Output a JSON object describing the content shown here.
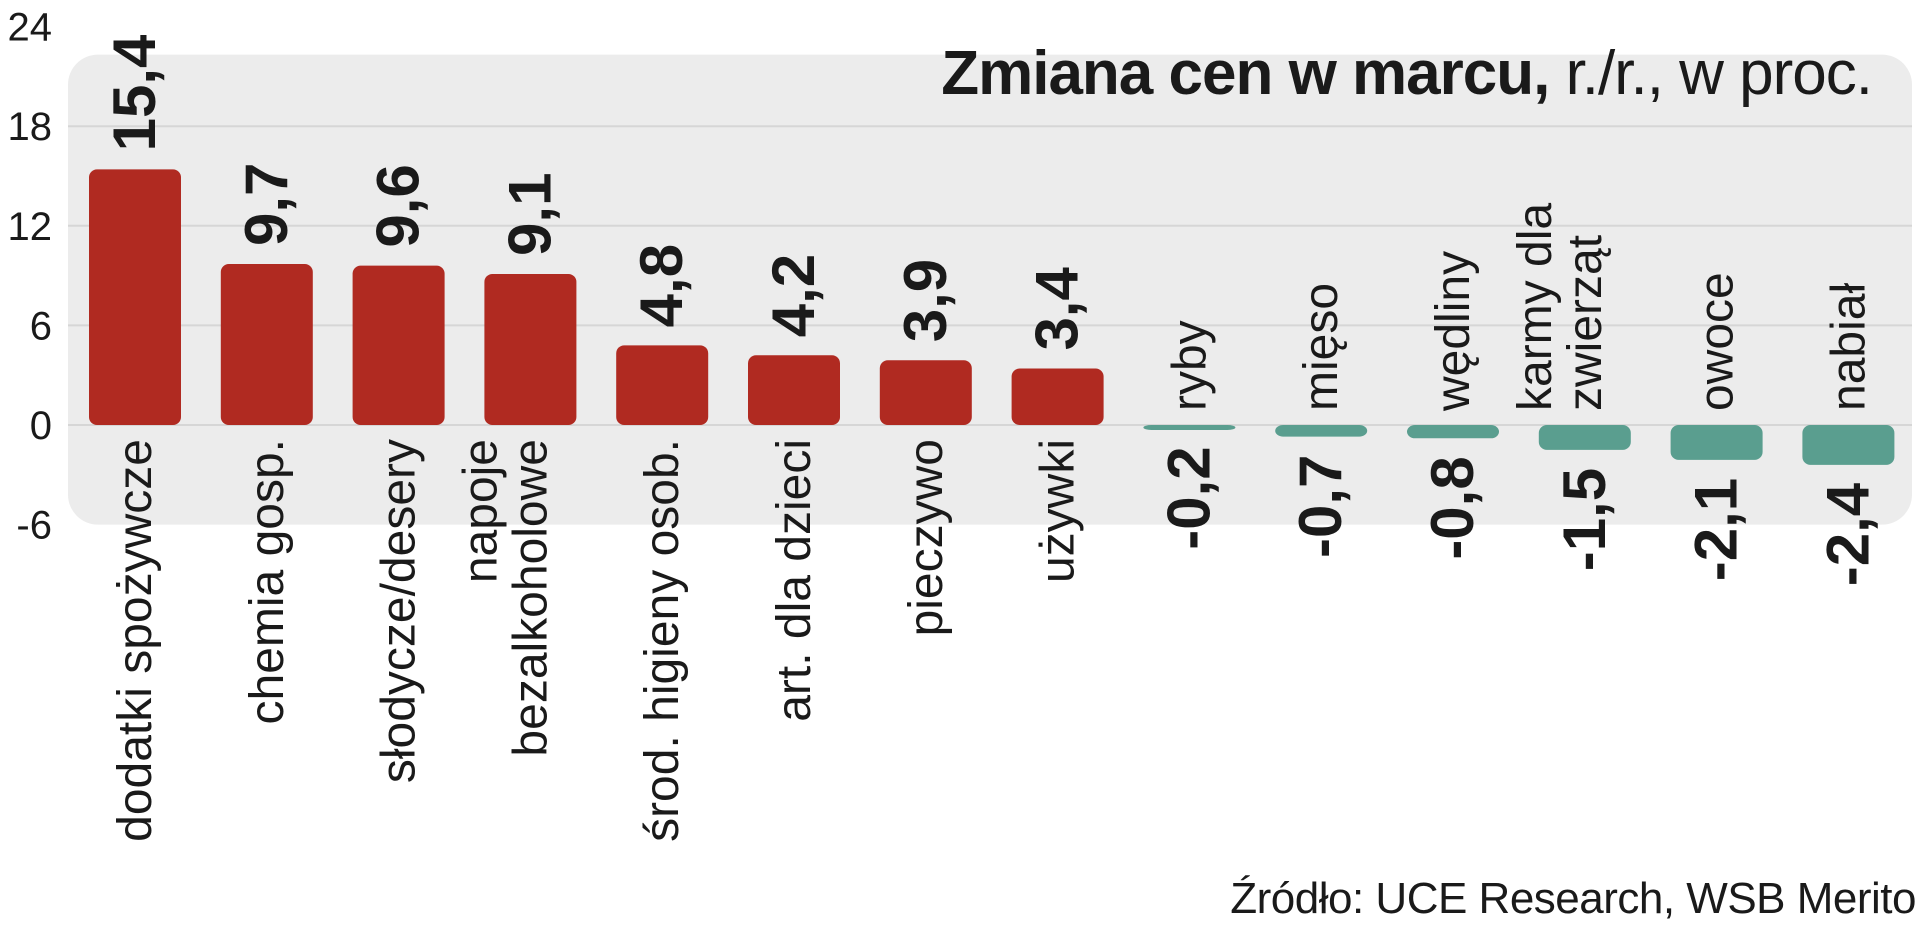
{
  "chart_data": {
    "type": "bar",
    "title": "Zmiana cen w marcu,",
    "title_unit": "r./r., w proc.",
    "categories": [
      "dodatki spożywcze",
      "chemia gosp.",
      "słodycze/desery",
      "napoje bezalkoholowe",
      "środ. higieny osob.",
      "art. dla dzieci",
      "pieczywo",
      "używki",
      "ryby",
      "mięso",
      "wędliny",
      "karmy dla zwierząt",
      "owoce",
      "nabiał"
    ],
    "category_lines": [
      [
        "dodatki spożywcze"
      ],
      [
        "chemia gosp."
      ],
      [
        "słodycze/desery"
      ],
      [
        "napoje",
        "bezalkoholowe"
      ],
      [
        "środ. higieny osob."
      ],
      [
        "art. dla dzieci"
      ],
      [
        "pieczywo"
      ],
      [
        "używki"
      ],
      [
        "ryby"
      ],
      [
        "mięso"
      ],
      [
        "wędliny"
      ],
      [
        "karmy dla",
        "zwierząt"
      ],
      [
        "owoce"
      ],
      [
        "nabiał"
      ]
    ],
    "values": [
      15.4,
      9.7,
      9.6,
      9.1,
      4.8,
      4.2,
      3.9,
      3.4,
      -0.2,
      -0.7,
      -0.8,
      -1.5,
      -2.1,
      -2.4
    ],
    "value_labels": [
      "15,4",
      "9,7",
      "9,6",
      "9,1",
      "4,8",
      "4,2",
      "3,9",
      "3,4",
      "-0,2",
      "-0,7",
      "-0,8",
      "-1,5",
      "-2,1",
      "-2,4"
    ],
    "ylim": [
      -6,
      24
    ],
    "yticks": [
      24,
      18,
      12,
      6,
      0,
      -6
    ],
    "colors": {
      "positive": "#b02a21",
      "negative": "#5a9e8f",
      "panel": "#ececec",
      "grid": "#d6d6d6"
    },
    "grid": true
  },
  "source": "Źródło: UCE Research, WSB Merito"
}
